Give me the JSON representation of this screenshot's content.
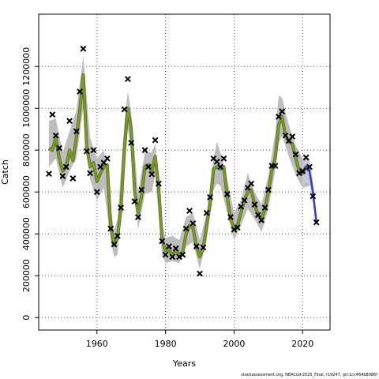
{
  "chart_data": {
    "type": "line",
    "xlabel": "Years",
    "ylabel": "Catch",
    "xlim": [
      1943,
      2028
    ],
    "ylim": [
      -60000,
      1450000
    ],
    "x_ticks": [
      1960,
      1980,
      2000,
      2020
    ],
    "y_ticks": [
      0,
      200000,
      400000,
      600000,
      800000,
      1000000,
      1200000
    ],
    "y_tick_labels": [
      "0",
      "200000",
      "400000",
      "600000",
      "800000",
      "1000000",
      "1200000"
    ],
    "grid": true,
    "colors": {
      "band": "#bdbdbd",
      "fit": "#7a9a2a",
      "fit_edge": "#556b1f",
      "projection": "#3b3bbf",
      "points": "#000000",
      "grid": "#555555"
    },
    "observed": {
      "x": [
        1946,
        1947,
        1948,
        1949,
        1950,
        1951,
        1952,
        1953,
        1954,
        1955,
        1956,
        1957,
        1958,
        1959,
        1960,
        1961,
        1962,
        1963,
        1964,
        1965,
        1966,
        1967,
        1968,
        1969,
        1970,
        1971,
        1972,
        1973,
        1974,
        1975,
        1976,
        1977,
        1978,
        1979,
        1980,
        1981,
        1982,
        1983,
        1984,
        1985,
        1986,
        1987,
        1988,
        1989,
        1990,
        1991,
        1992,
        1993,
        1994,
        1995,
        1996,
        1997,
        1998,
        1999,
        2000,
        2001,
        2002,
        2003,
        2004,
        2005,
        2006,
        2007,
        2008,
        2009,
        2010,
        2011,
        2012,
        2013,
        2014,
        2015,
        2016,
        2017,
        2018,
        2019,
        2020,
        2021,
        2022,
        2023,
        2024
      ],
      "y": [
        687000,
        970000,
        870000,
        810000,
        676000,
        720000,
        940000,
        665000,
        890000,
        1080000,
        1285000,
        795000,
        690000,
        800000,
        600000,
        720000,
        740000,
        760000,
        425000,
        350000,
        390000,
        525000,
        995000,
        1140000,
        835000,
        555000,
        480000,
        610000,
        800000,
        720000,
        685000,
        848000,
        640000,
        365000,
        300000,
        340000,
        290000,
        330000,
        290000,
        300000,
        425000,
        510000,
        450000,
        340000,
        210000,
        335000,
        500000,
        575000,
        760000,
        745000,
        720000,
        760000,
        590000,
        480000,
        420000,
        430000,
        530000,
        560000,
        620000,
        640000,
        540000,
        490000,
        465000,
        525000,
        610000,
        725000,
        725000,
        960000,
        985000,
        870000,
        845000,
        865000,
        780000,
        690000,
        700000,
        765000,
        720000,
        580000,
        455000
      ]
    },
    "fit": {
      "x": [
        1946,
        1947,
        1948,
        1949,
        1950,
        1951,
        1952,
        1953,
        1954,
        1955,
        1956,
        1957,
        1958,
        1959,
        1960,
        1961,
        1962,
        1963,
        1964,
        1965,
        1966,
        1967,
        1968,
        1969,
        1970,
        1971,
        1972,
        1973,
        1974,
        1975,
        1976,
        1977,
        1978,
        1979,
        1980,
        1981,
        1982,
        1983,
        1984,
        1985,
        1986,
        1987,
        1988,
        1989,
        1990,
        1991,
        1992,
        1993,
        1994,
        1995,
        1996,
        1997,
        1998,
        1999,
        2000,
        2001,
        2002,
        2003,
        2004,
        2005,
        2006,
        2007,
        2008,
        2009,
        2010,
        2011,
        2012,
        2013,
        2014,
        2015,
        2016,
        2017,
        2018,
        2019,
        2020,
        2021,
        2022
      ],
      "y": [
        810000,
        800000,
        860000,
        760000,
        700000,
        720000,
        800000,
        750000,
        860000,
        990000,
        1160000,
        820000,
        720000,
        740000,
        650000,
        690000,
        720000,
        730000,
        440000,
        345000,
        380000,
        520000,
        800000,
        1000000,
        900000,
        600000,
        500000,
        580000,
        720000,
        730000,
        700000,
        770000,
        620000,
        370000,
        320000,
        325000,
        300000,
        320000,
        300000,
        310000,
        400000,
        440000,
        430000,
        340000,
        290000,
        330000,
        440000,
        540000,
        710000,
        720000,
        710000,
        720000,
        580000,
        470000,
        430000,
        440000,
        500000,
        560000,
        600000,
        610000,
        540000,
        490000,
        470000,
        520000,
        600000,
        700000,
        760000,
        920000,
        960000,
        870000,
        840000,
        830000,
        760000,
        700000,
        690000,
        720000,
        700000
      ]
    },
    "band": {
      "x": [
        1946,
        1948,
        1950,
        1952,
        1954,
        1956,
        1958,
        1960,
        1962,
        1964,
        1965,
        1966,
        1968,
        1969,
        1970,
        1972,
        1974,
        1976,
        1977,
        1979,
        1980,
        1982,
        1984,
        1986,
        1988,
        1990,
        1992,
        1994,
        1995,
        1996,
        1998,
        2000,
        2002,
        2004,
        2006,
        2008,
        2010,
        2012,
        2013,
        2014,
        2016,
        2018,
        2020,
        2022
      ],
      "upper": [
        940000,
        950000,
        790000,
        890000,
        990000,
        1250000,
        860000,
        760000,
        800000,
        520000,
        420000,
        470000,
        930000,
        1080000,
        980000,
        600000,
        790000,
        790000,
        830000,
        450000,
        380000,
        390000,
        370000,
        480000,
        500000,
        370000,
        500000,
        760000,
        840000,
        790000,
        660000,
        500000,
        560000,
        690000,
        600000,
        540000,
        680000,
        880000,
        1060000,
        1050000,
        920000,
        820000,
        760000,
        760000
      ],
      "lower": [
        720000,
        760000,
        620000,
        700000,
        760000,
        1000000,
        660000,
        560000,
        620000,
        370000,
        290000,
        300000,
        700000,
        900000,
        810000,
        420000,
        590000,
        600000,
        680000,
        300000,
        260000,
        270000,
        260000,
        340000,
        360000,
        230000,
        370000,
        610000,
        640000,
        630000,
        500000,
        370000,
        440000,
        520000,
        470000,
        410000,
        520000,
        700000,
        830000,
        870000,
        770000,
        680000,
        620000,
        630000
      ]
    },
    "projection": {
      "x": [
        2020,
        2021,
        2022,
        2023,
        2024
      ],
      "y": [
        690000,
        720000,
        700000,
        600000,
        460000
      ],
      "upper": [
        760000,
        770000,
        760000,
        650000,
        500000
      ],
      "lower": [
        620000,
        650000,
        640000,
        550000,
        420000
      ]
    },
    "footer_text": "stockassessment.org, NEACod-2025_Final, r19247, git:1cc464b8086f"
  }
}
